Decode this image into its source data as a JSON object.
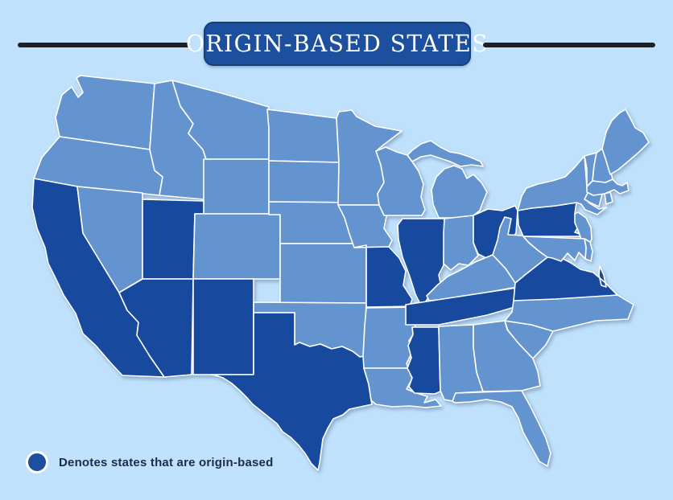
{
  "title": {
    "text": "ORIGIN-BASED STATES"
  },
  "legend": {
    "text": "Denotes states that are origin-based"
  },
  "colors": {
    "background": "#bfe1fb",
    "state_default": "#6494d0",
    "state_origin": "#17499f",
    "state_border": "#ffffff",
    "title_box_fill": "#1c4f9e",
    "title_box_border": "#153e7d",
    "title_text": "#ffffff",
    "rule": "#1e2023",
    "legend_text": "#1c2b4a",
    "legend_dot_fill": "#1c4f9e",
    "legend_dot_ring": "#ffffff"
  },
  "chart_data": {
    "type": "choropleth-map",
    "title": "ORIGIN-BASED STATES",
    "legend_entries": [
      {
        "label": "Denotes states that are origin-based",
        "color": "#17499f"
      }
    ],
    "region": "United States (contiguous 48 states)",
    "origin_based_states": [
      "CA",
      "AZ",
      "UT",
      "NM",
      "TX",
      "MO",
      "IL",
      "MS",
      "TN",
      "OH",
      "PA",
      "VA"
    ],
    "states": [
      {
        "abbr": "WA",
        "name": "Washington",
        "origin": false
      },
      {
        "abbr": "OR",
        "name": "Oregon",
        "origin": false
      },
      {
        "abbr": "CA",
        "name": "California",
        "origin": true
      },
      {
        "abbr": "NV",
        "name": "Nevada",
        "origin": false
      },
      {
        "abbr": "ID",
        "name": "Idaho",
        "origin": false
      },
      {
        "abbr": "MT",
        "name": "Montana",
        "origin": false
      },
      {
        "abbr": "WY",
        "name": "Wyoming",
        "origin": false
      },
      {
        "abbr": "UT",
        "name": "Utah",
        "origin": true
      },
      {
        "abbr": "CO",
        "name": "Colorado",
        "origin": false
      },
      {
        "abbr": "AZ",
        "name": "Arizona",
        "origin": true
      },
      {
        "abbr": "NM",
        "name": "New Mexico",
        "origin": true
      },
      {
        "abbr": "ND",
        "name": "North Dakota",
        "origin": false
      },
      {
        "abbr": "SD",
        "name": "South Dakota",
        "origin": false
      },
      {
        "abbr": "NE",
        "name": "Nebraska",
        "origin": false
      },
      {
        "abbr": "KS",
        "name": "Kansas",
        "origin": false
      },
      {
        "abbr": "OK",
        "name": "Oklahoma",
        "origin": false
      },
      {
        "abbr": "TX",
        "name": "Texas",
        "origin": true
      },
      {
        "abbr": "MN",
        "name": "Minnesota",
        "origin": false
      },
      {
        "abbr": "IA",
        "name": "Iowa",
        "origin": false
      },
      {
        "abbr": "MO",
        "name": "Missouri",
        "origin": true
      },
      {
        "abbr": "AR",
        "name": "Arkansas",
        "origin": false
      },
      {
        "abbr": "LA",
        "name": "Louisiana",
        "origin": false
      },
      {
        "abbr": "WI",
        "name": "Wisconsin",
        "origin": false
      },
      {
        "abbr": "IL",
        "name": "Illinois",
        "origin": true
      },
      {
        "abbr": "MI",
        "name": "Michigan",
        "origin": false
      },
      {
        "abbr": "IN",
        "name": "Indiana",
        "origin": false
      },
      {
        "abbr": "OH",
        "name": "Ohio",
        "origin": true
      },
      {
        "abbr": "KY",
        "name": "Kentucky",
        "origin": false
      },
      {
        "abbr": "TN",
        "name": "Tennessee",
        "origin": true
      },
      {
        "abbr": "MS",
        "name": "Mississippi",
        "origin": true
      },
      {
        "abbr": "AL",
        "name": "Alabama",
        "origin": false
      },
      {
        "abbr": "GA",
        "name": "Georgia",
        "origin": false
      },
      {
        "abbr": "FL",
        "name": "Florida",
        "origin": false
      },
      {
        "abbr": "SC",
        "name": "South Carolina",
        "origin": false
      },
      {
        "abbr": "NC",
        "name": "North Carolina",
        "origin": false
      },
      {
        "abbr": "VA",
        "name": "Virginia",
        "origin": true
      },
      {
        "abbr": "WV",
        "name": "West Virginia",
        "origin": false
      },
      {
        "abbr": "PA",
        "name": "Pennsylvania",
        "origin": true
      },
      {
        "abbr": "NY",
        "name": "New York",
        "origin": false
      },
      {
        "abbr": "NJ",
        "name": "New Jersey",
        "origin": false
      },
      {
        "abbr": "DE",
        "name": "Delaware",
        "origin": false
      },
      {
        "abbr": "MD",
        "name": "Maryland",
        "origin": false
      },
      {
        "abbr": "CT",
        "name": "Connecticut",
        "origin": false
      },
      {
        "abbr": "RI",
        "name": "Rhode Island",
        "origin": false
      },
      {
        "abbr": "MA",
        "name": "Massachusetts",
        "origin": false
      },
      {
        "abbr": "VT",
        "name": "Vermont",
        "origin": false
      },
      {
        "abbr": "NH",
        "name": "New Hampshire",
        "origin": false
      },
      {
        "abbr": "ME",
        "name": "Maine",
        "origin": false
      }
    ]
  }
}
